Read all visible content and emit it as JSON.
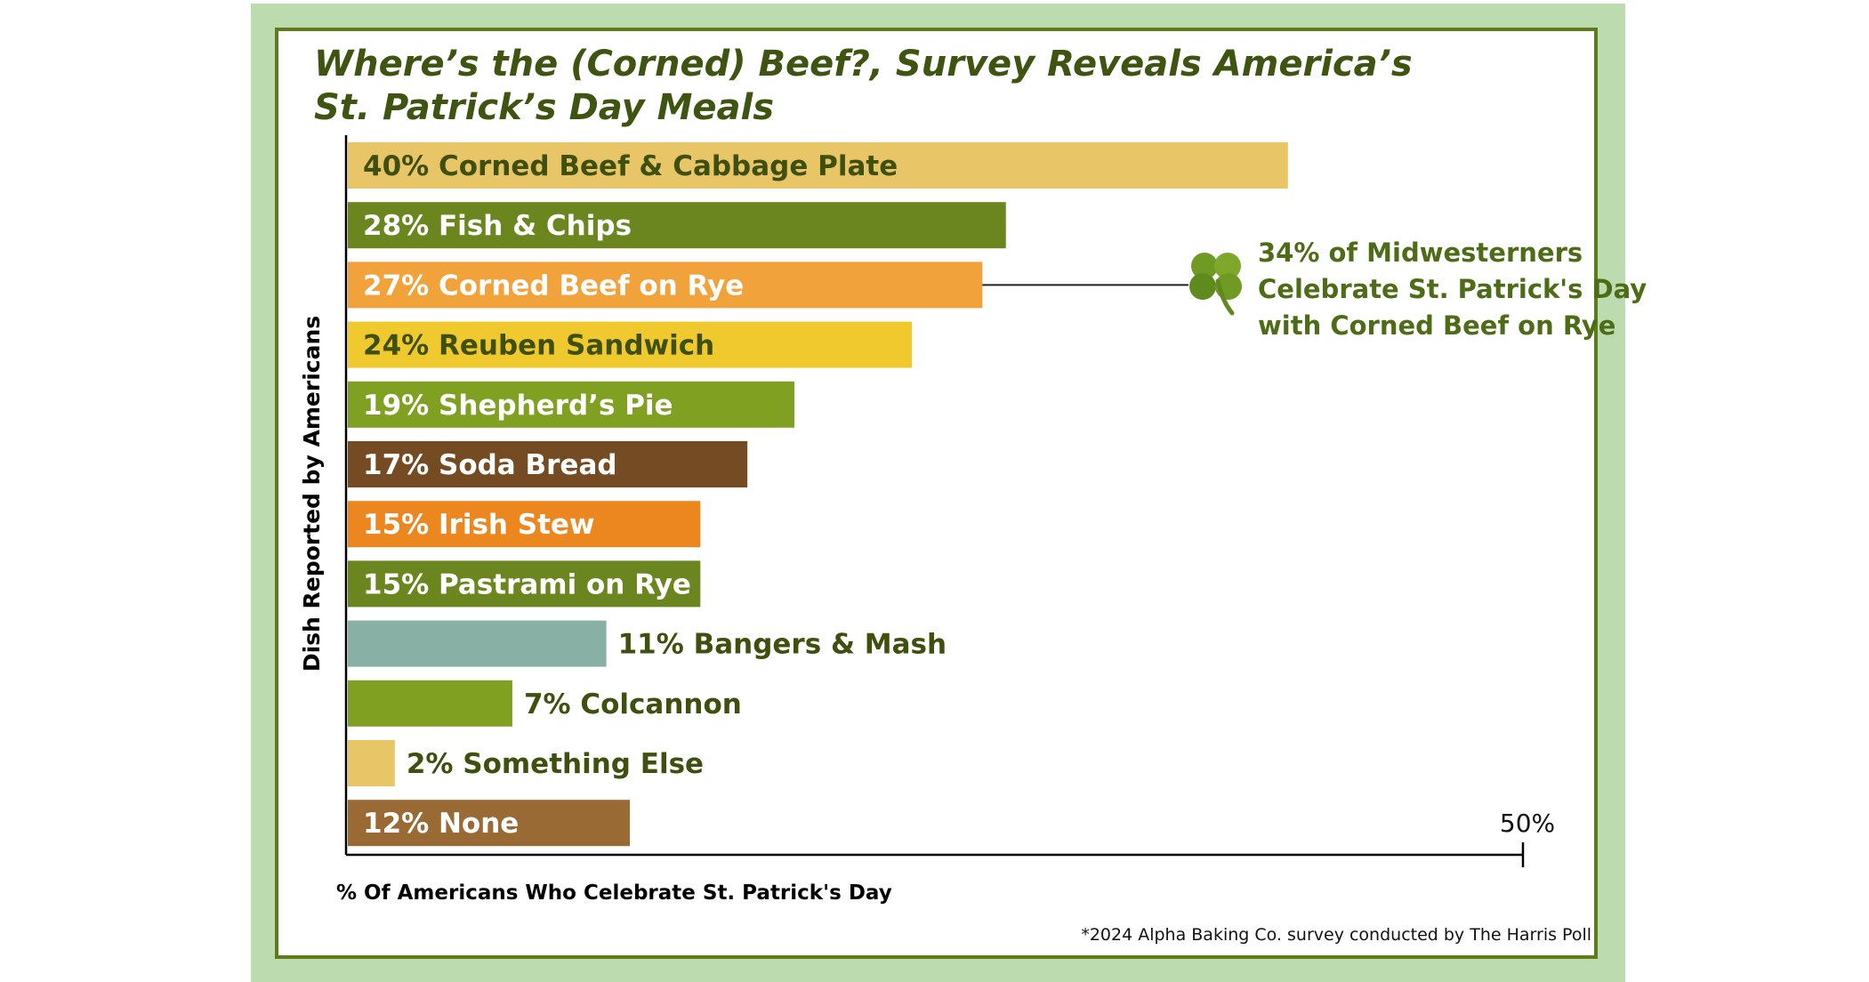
{
  "chart_data": {
    "type": "bar",
    "orientation": "horizontal",
    "title_lines": [
      "Where’s the (Corned) Beef?, Survey Reveals America’s",
      "St. Patrick’s Day Meals"
    ],
    "ylabel": "Dish Reported by  Americans",
    "xlabel": "% Of Americans Who Celebrate St. Patrick's Day",
    "xlim": [
      0,
      50
    ],
    "x_tick_label": "50%",
    "grid": false,
    "bars": [
      {
        "label": "40% Corned Beef & Cabbage Plate",
        "value": 40,
        "color": "#e8c668",
        "text_color": "#3f4f0e",
        "label_inside": true
      },
      {
        "label": "28% Fish & Chips",
        "value": 28,
        "color": "#6b861e",
        "text_color": "#ffffff",
        "label_inside": true
      },
      {
        "label": "27% Corned Beef on Rye",
        "value": 27,
        "color": "#f2a23a",
        "text_color": "#ffffff",
        "label_inside": true
      },
      {
        "label": "24% Reuben Sandwich",
        "value": 24,
        "color": "#f0c92e",
        "text_color": "#3f4f0e",
        "label_inside": true
      },
      {
        "label": "19% Shepherd’s Pie",
        "value": 19,
        "color": "#7fa020",
        "text_color": "#ffffff",
        "label_inside": true
      },
      {
        "label": "17% Soda Bread",
        "value": 17,
        "color": "#744b22",
        "text_color": "#ffffff",
        "label_inside": true
      },
      {
        "label": "15% Irish Stew",
        "value": 15,
        "color": "#ec861e",
        "text_color": "#ffffff",
        "label_inside": true
      },
      {
        "label": "15% Pastrami on Rye",
        "value": 15,
        "color": "#6b861e",
        "text_color": "#ffffff",
        "label_inside": true
      },
      {
        "label": "11% Bangers & Mash",
        "value": 11,
        "color": "#89b0a4",
        "text_color": "#3f4f0e",
        "label_inside": false
      },
      {
        "label": "7% Colcannon",
        "value": 7,
        "color": "#7fa020",
        "text_color": "#3f4f0e",
        "label_inside": false
      },
      {
        "label": "2% Something Else",
        "value": 2,
        "color": "#e8c668",
        "text_color": "#3f4f0e",
        "label_inside": false
      },
      {
        "label": "12% None",
        "value": 12,
        "color": "#9a6a34",
        "text_color": "#ffffff",
        "label_inside": true
      }
    ],
    "annotation": {
      "target_bar": 2,
      "lines": [
        "34%  of Midwesterners",
        "Celebrate St. Patrick's Day",
        "with Corned Beef on Rye"
      ],
      "icon": "shamrock-icon",
      "color": "#5e8a1e"
    },
    "footnote": "*2024 Alpha Baking Co. survey conducted by The Harris Poll"
  }
}
